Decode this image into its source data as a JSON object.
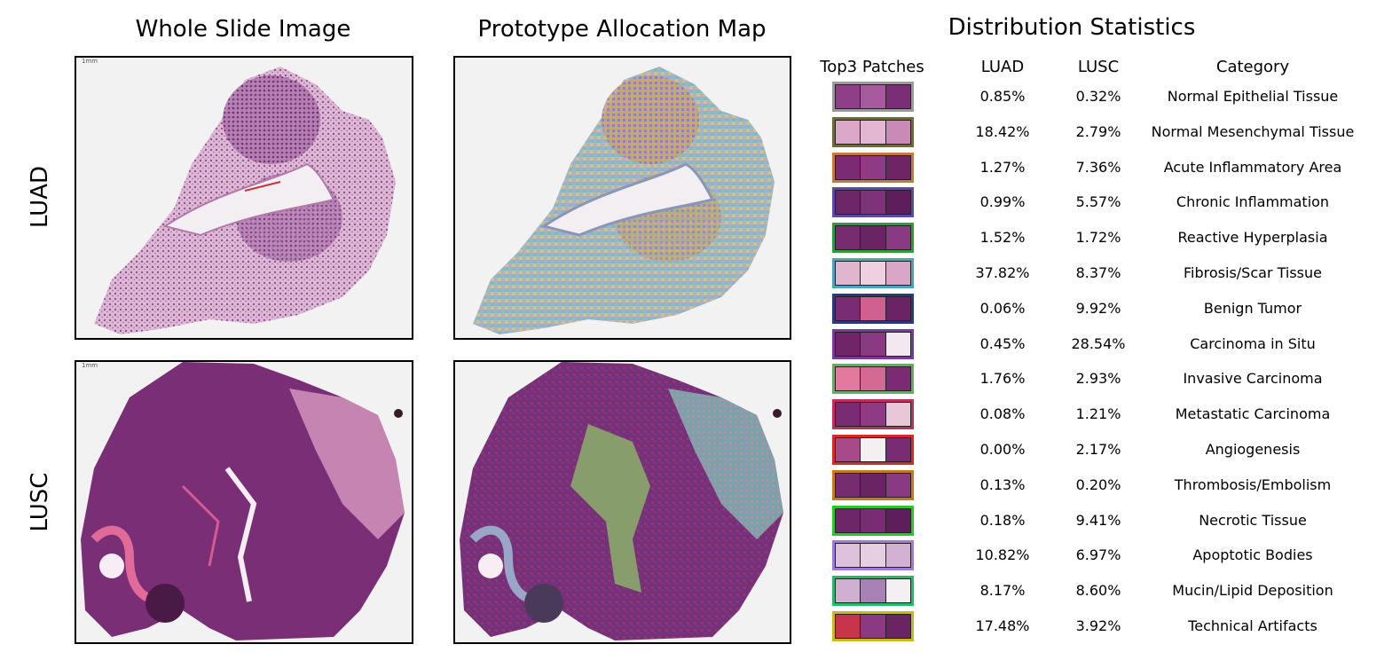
{
  "titles": {
    "wsi": "Whole Slide Image",
    "pam": "Prototype Allocation Map",
    "stats": "Distribution Statistics"
  },
  "row_labels": [
    "LUAD",
    "LUSC"
  ],
  "scale_label": "1mm",
  "table": {
    "headers": {
      "patches": "Top3 Patches",
      "luad": "LUAD",
      "lusc": "LUSC",
      "category": "Category"
    },
    "rows": [
      {
        "luad": "0.85%",
        "lusc": "0.32%",
        "category": "Normal Epithelial Tissue",
        "border": "#9a9a9a",
        "tiles": [
          "#8e3f86",
          "#a85a9e",
          "#7a2f74"
        ]
      },
      {
        "luad": "18.42%",
        "lusc": "2.79%",
        "category": "Normal Mesenchymal Tissue",
        "border": "#6b6b3a",
        "tiles": [
          "#d9a8c8",
          "#e3b6d2",
          "#c98bb5"
        ]
      },
      {
        "luad": "1.27%",
        "lusc": "7.36%",
        "category": "Acute Inflammatory Area",
        "border": "#c8783c",
        "tiles": [
          "#7c2a72",
          "#8e3a84",
          "#6f2466"
        ]
      },
      {
        "luad": "0.99%",
        "lusc": "5.57%",
        "category": "Chronic Inflammation",
        "border": "#5a4aa8",
        "tiles": [
          "#6d2668",
          "#7e3278",
          "#5e1e5c"
        ]
      },
      {
        "luad": "1.52%",
        "lusc": "1.72%",
        "category": "Reactive Hyperplasia",
        "border": "#2e9a3a",
        "tiles": [
          "#782c70",
          "#6a2464",
          "#8a3a80"
        ]
      },
      {
        "luad": "37.82%",
        "lusc": "8.37%",
        "category": "Fibrosis/Scar Tissue",
        "border": "#4aa6b6",
        "tiles": [
          "#e0b6cf",
          "#eed0e0",
          "#d8a6c6"
        ]
      },
      {
        "luad": "0.06%",
        "lusc": "9.92%",
        "category": "Benign Tumor",
        "border": "#2a3a78",
        "tiles": [
          "#7a2c72",
          "#d0608e",
          "#6a2464"
        ]
      },
      {
        "luad": "0.45%",
        "lusc": "28.54%",
        "category": "Carcinoma in Situ",
        "border": "#7a3a98",
        "tiles": [
          "#6e2668",
          "#8a3a80",
          "#f2e8ef"
        ]
      },
      {
        "luad": "1.76%",
        "lusc": "2.93%",
        "category": "Invasive Carcinoma",
        "border": "#6aa86a",
        "tiles": [
          "#e27aa0",
          "#d46a94",
          "#7c2a72"
        ]
      },
      {
        "luad": "0.08%",
        "lusc": "1.21%",
        "category": "Metastatic Carcinoma",
        "border": "#b8325a",
        "tiles": [
          "#7a2c72",
          "#8e3a84",
          "#e8c8d8"
        ]
      },
      {
        "luad": "0.00%",
        "lusc": "2.17%",
        "category": "Angiogenesis",
        "border": "#d82828",
        "tiles": [
          "#a84a8a",
          "#f4f0f2",
          "#7a2c72"
        ]
      },
      {
        "luad": "0.13%",
        "lusc": "0.20%",
        "category": "Thrombosis/Embolism",
        "border": "#c87a1a",
        "tiles": [
          "#782c70",
          "#6a2464",
          "#8a3a80"
        ]
      },
      {
        "luad": "0.18%",
        "lusc": "9.41%",
        "category": "Necrotic Tissue",
        "border": "#28c828",
        "tiles": [
          "#6d2668",
          "#7a2c72",
          "#5e1e5c"
        ]
      },
      {
        "luad": "10.82%",
        "lusc": "6.97%",
        "category": "Apoptotic Bodies",
        "border": "#a07ad8",
        "tiles": [
          "#dcc0dc",
          "#e6cfe2",
          "#d2b2d2"
        ]
      },
      {
        "luad": "8.17%",
        "lusc": "8.60%",
        "category": "Mucin/Lipid Deposition",
        "border": "#28b86a",
        "tiles": [
          "#cfb0d0",
          "#a882b4",
          "#f2eef2"
        ]
      },
      {
        "luad": "17.48%",
        "lusc": "3.92%",
        "category": "Technical Artifacts",
        "border": "#c8b820",
        "tiles": [
          "#c8344a",
          "#8a3a80",
          "#6a2464"
        ]
      }
    ]
  }
}
